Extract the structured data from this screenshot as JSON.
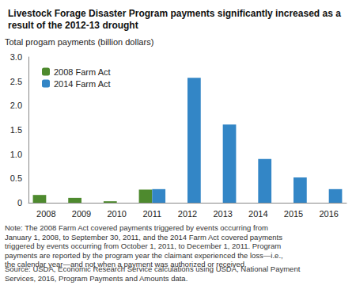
{
  "chart_data": {
    "type": "bar",
    "title": "Livestock Forage Disaster Program payments significantly increased as a result of the 2012-13 drought",
    "y_label": "Total progam payments (billion dollars)",
    "categories": [
      "2008",
      "2009",
      "2010",
      "2011",
      "2012",
      "2013",
      "2014",
      "2015",
      "2016"
    ],
    "series": [
      {
        "name": "2008 Farm Act",
        "color": "#4e8a2e",
        "values": [
          0.16,
          0.1,
          0.03,
          0.27,
          null,
          null,
          null,
          null,
          null
        ]
      },
      {
        "name": "2014 Farm Act",
        "color": "#3386c6",
        "values": [
          null,
          null,
          null,
          0.28,
          2.57,
          1.61,
          0.9,
          0.52,
          0.28
        ]
      }
    ],
    "ylim": [
      0,
      3
    ],
    "yticks": [
      0,
      0.5,
      {
        "value": 1,
        "label": "1.0"
      },
      1.5,
      {
        "value": 2,
        "label": "2.0"
      },
      2.5,
      {
        "value": 3,
        "label": "3.0"
      }
    ],
    "grid": false,
    "legend": "top-left",
    "annotations": [
      "Note: The 2008 Farm Act covered payments triggered by events occurring from January 1, 2008, to September 30, 2011, and the 2014 Farm Act covered payments triggered by events occurring from October 1, 2011, to December 1, 2011. Program payments are reported by the program year the claimant experienced the loss—i.e., the calendar year—and not when a payment was authorized or received.",
      "Source: USDA, Economic Research Service calculations using USDA, National Payment Services, 2016, Program Payments and Amounts data."
    ]
  }
}
